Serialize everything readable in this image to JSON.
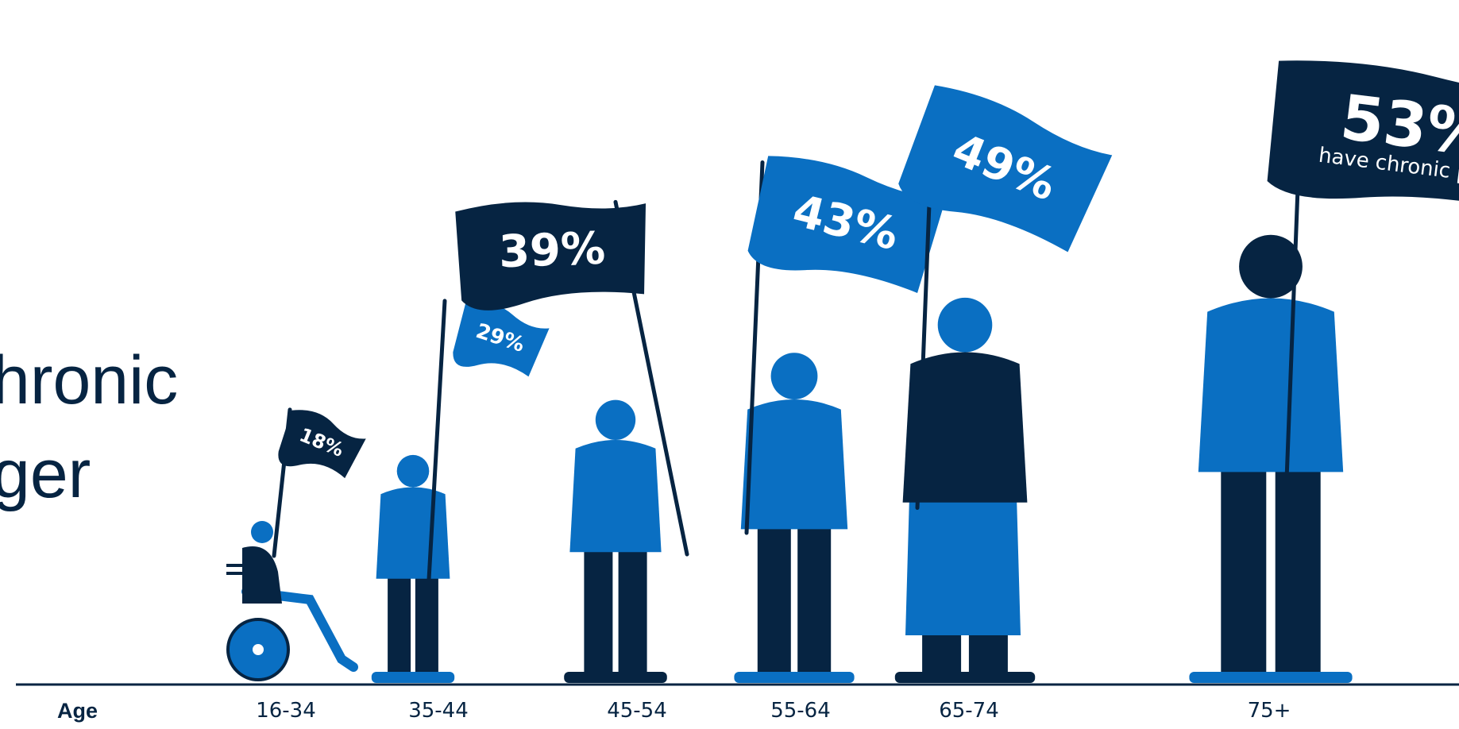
{
  "headline": {
    "line1": "hronic",
    "line2": "ger"
  },
  "colors": {
    "navy": "#062442",
    "blue": "#0a6fc2",
    "light_blue": "#a8c8ea",
    "axis": "#062442"
  },
  "chart_data": {
    "type": "bar",
    "xlabel": "Age",
    "categories": [
      "16-34",
      "35-44",
      "45-54",
      "55-64",
      "65-74",
      "75+"
    ],
    "series": [
      {
        "values": [
          18,
          29,
          39,
          43,
          49,
          53
        ],
        "labels": [
          "18%",
          "29%",
          "39%",
          "43%",
          "49%",
          "53%"
        ],
        "flag_colors": [
          "navy",
          "blue",
          "navy",
          "blue",
          "blue",
          "navy"
        ]
      }
    ],
    "annotations": [
      "have chronic pain"
    ]
  }
}
